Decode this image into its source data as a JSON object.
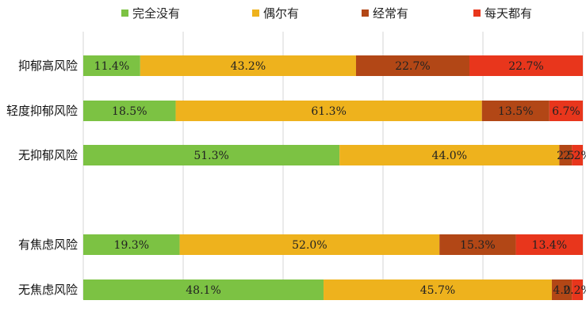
{
  "chart_data": {
    "type": "bar",
    "orientation": "horizontal",
    "stacked": true,
    "percent_stacked": true,
    "categories": [
      "抑郁高风险",
      "轻度抑郁风险",
      "无抑郁风险",
      "有焦虑风险",
      "无焦虑风险"
    ],
    "series": [
      {
        "name": "完全没有",
        "color": "#7cc243",
        "values": [
          11.4,
          18.5,
          51.3,
          19.3,
          48.1
        ],
        "labels": [
          "11.4%",
          "18.5%",
          "51.3%",
          "19.3%",
          "48.1%"
        ]
      },
      {
        "name": "偶尔有",
        "color": "#eeb21d",
        "values": [
          43.2,
          61.3,
          44.0,
          52.0,
          45.7
        ],
        "labels": [
          "43.2%",
          "61.3%",
          "44.0%",
          "52.0%",
          "45.7%"
        ]
      },
      {
        "name": "经常有",
        "color": "#b24716",
        "values": [
          22.7,
          13.5,
          2.5,
          15.3,
          4.0
        ],
        "labels": [
          "22.7%",
          "13.5%",
          "2.5",
          "15.3%",
          "4.0"
        ]
      },
      {
        "name": "每天都有",
        "color": "#e8361c",
        "values": [
          22.7,
          6.7,
          2.2,
          13.4,
          2.2
        ],
        "labels": [
          "22.7%",
          "6.7%",
          "2.2%",
          "13.4%",
          "2.2%"
        ]
      }
    ],
    "legend_position": "top",
    "grid": true,
    "xlim": [
      0,
      100
    ]
  }
}
